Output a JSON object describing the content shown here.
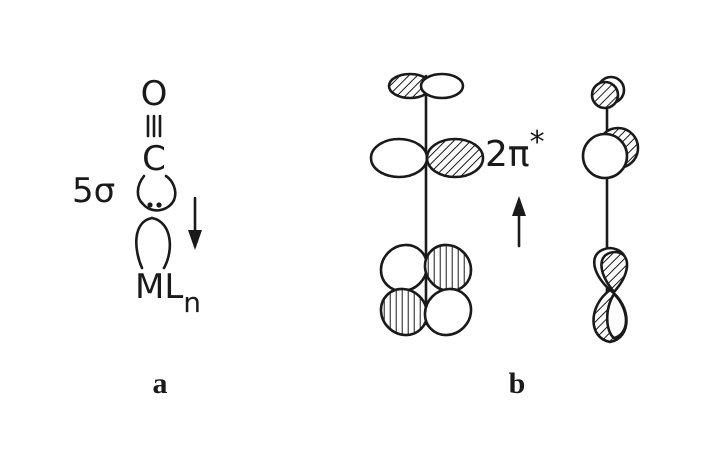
{
  "panel_a": {
    "label": "a",
    "oxygen": "O",
    "carbon": "C",
    "sigma_label": "5σ",
    "metal": "M",
    "ligand": "L",
    "ligand_subscript": "n"
  },
  "panel_b": {
    "label": "b",
    "pi_label": "2π",
    "pi_superscript": "*"
  },
  "colors": {
    "ink": "#1a1a1a",
    "background": "#ffffff"
  }
}
